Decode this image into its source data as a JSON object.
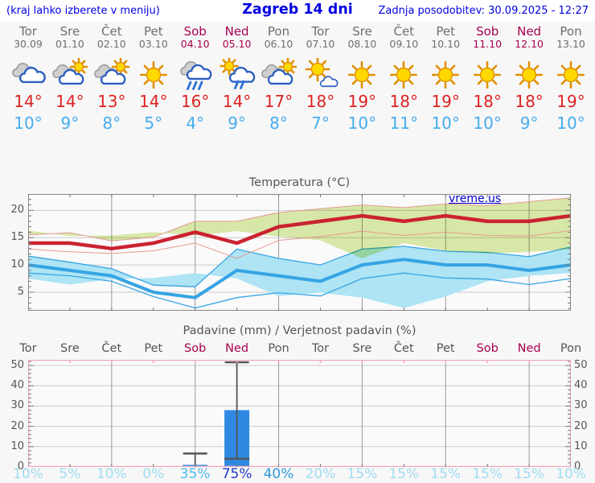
{
  "header": {
    "hint": "(kraj lahko izberete v meniju)",
    "title": "Zagreb 14 dni",
    "updated": "Zadnja posodobitev: 30.09.2025 - 12:27"
  },
  "watermark": {
    "text": "vreme.us"
  },
  "days": [
    {
      "name": "Tor",
      "date": "30.09",
      "weekend": false,
      "icon": "cloudy",
      "temp_max": 14,
      "temp_min": 10,
      "precip_prob": 10
    },
    {
      "name": "Sre",
      "date": "01.10",
      "weekend": false,
      "icon": "sun-cloud",
      "temp_max": 14,
      "temp_min": 9,
      "precip_prob": 5
    },
    {
      "name": "Čet",
      "date": "02.10",
      "weekend": false,
      "icon": "sun-cloud",
      "temp_max": 13,
      "temp_min": 8,
      "precip_prob": 10
    },
    {
      "name": "Pet",
      "date": "03.10",
      "weekend": false,
      "icon": "sunny",
      "temp_max": 14,
      "temp_min": 5,
      "precip_prob": 0
    },
    {
      "name": "Sob",
      "date": "04.10",
      "weekend": true,
      "icon": "rain",
      "temp_max": 16,
      "temp_min": 4,
      "precip_prob": 35
    },
    {
      "name": "Ned",
      "date": "05.10",
      "weekend": true,
      "icon": "sun-rain",
      "temp_max": 14,
      "temp_min": 9,
      "precip_prob": 75
    },
    {
      "name": "Pon",
      "date": "06.10",
      "weekend": false,
      "icon": "sun-cloud",
      "temp_max": 17,
      "temp_min": 8,
      "precip_prob": 40
    },
    {
      "name": "Tor",
      "date": "07.10",
      "weekend": false,
      "icon": "sun-small-cloud",
      "temp_max": 18,
      "temp_min": 7,
      "precip_prob": 20
    },
    {
      "name": "Sre",
      "date": "08.10",
      "weekend": false,
      "icon": "sunny",
      "temp_max": 19,
      "temp_min": 10,
      "precip_prob": 15
    },
    {
      "name": "Čet",
      "date": "09.10",
      "weekend": false,
      "icon": "sunny",
      "temp_max": 18,
      "temp_min": 11,
      "precip_prob": 15
    },
    {
      "name": "Pet",
      "date": "10.10",
      "weekend": false,
      "icon": "sunny",
      "temp_max": 19,
      "temp_min": 10,
      "precip_prob": 15
    },
    {
      "name": "Sob",
      "date": "11.10",
      "weekend": true,
      "icon": "sunny",
      "temp_max": 18,
      "temp_min": 10,
      "precip_prob": 15
    },
    {
      "name": "Ned",
      "date": "12.10",
      "weekend": true,
      "icon": "sunny",
      "temp_max": 18,
      "temp_min": 9,
      "precip_prob": 15
    },
    {
      "name": "Pon",
      "date": "13.10",
      "weekend": false,
      "icon": "sunny",
      "temp_max": 19,
      "temp_min": 10,
      "precip_prob": 10
    }
  ],
  "chart_data": [
    {
      "type": "line",
      "title": "Temperatura (°C)",
      "x_categories": [
        "Tor",
        "Sre",
        "Čet",
        "Pet",
        "Sob",
        "Ned",
        "Pon",
        "Tor",
        "Sre",
        "Čet",
        "Pet",
        "Sob",
        "Ned",
        "Pon"
      ],
      "ylim": [
        1.6,
        23
      ],
      "y_ticks": [
        5,
        10,
        15,
        20
      ],
      "y_minor_step": 1,
      "grid_x_indices": [
        2,
        4,
        6,
        8,
        10,
        12
      ],
      "series": [
        {
          "name": "max-temp",
          "values": [
            14,
            14,
            13,
            14,
            16,
            14,
            17,
            18,
            19,
            18,
            19,
            18,
            18,
            19
          ],
          "band_upper": [
            15.5,
            15.9,
            14.4,
            15.1,
            18,
            18,
            19.6,
            20.3,
            21,
            20.5,
            21.2,
            20.9,
            21.6,
            22.3
          ],
          "band_lower": [
            12.9,
            12.4,
            12.1,
            12.6,
            14,
            11.2,
            14.5,
            15.2,
            16.2,
            15.4,
            16,
            15.4,
            15.3,
            16.3
          ]
        },
        {
          "name": "min-temp",
          "values": [
            10,
            9,
            8,
            5,
            4,
            9,
            8,
            7,
            10,
            11,
            10,
            10,
            9,
            10
          ],
          "band_upper": [
            11.6,
            10.5,
            9.3,
            6.3,
            6,
            12.9,
            11.2,
            10,
            12.9,
            13.4,
            12.5,
            12.3,
            11.5,
            13.3
          ],
          "band_lower": [
            8.5,
            8,
            7,
            4.2,
            2.1,
            4,
            4.9,
            4.3,
            7.5,
            8.5,
            7.6,
            7.4,
            6.4,
            7.5
          ]
        }
      ]
    },
    {
      "type": "bar",
      "title": "Padavine (mm) / Verjetnost padavin (%)",
      "x_categories": [
        "Tor",
        "Sre",
        "Čet",
        "Pet",
        "Sob",
        "Ned",
        "Pon",
        "Tor",
        "Sre",
        "Čet",
        "Pet",
        "Sob",
        "Ned",
        "Pon"
      ],
      "ylim": [
        0,
        52.8
      ],
      "y_ticks": [
        0,
        10,
        20,
        30,
        40,
        50
      ],
      "y_minor_step": 2,
      "grid_x_indices": [
        2,
        4,
        6,
        8,
        10,
        12
      ],
      "bars": [
        {
          "day_index": 4,
          "amount_mm": 1,
          "range_low_mm": 0,
          "range_high_mm": 7
        },
        {
          "day_index": 5,
          "amount_mm": 28,
          "range_low_mm": 4,
          "range_high_mm": 52
        }
      ],
      "probabilities_pct": [
        10,
        5,
        10,
        0,
        35,
        75,
        40,
        20,
        15,
        15,
        15,
        15,
        15,
        10
      ]
    }
  ],
  "colors": {
    "header_blue": "#0000e0",
    "weekday_gray": "#6e6e6e",
    "weekend_red": "#a6024e",
    "temp_max_text": "#dd2222",
    "temp_min_text": "#46acee",
    "axis_text": "#555555",
    "max_line": "#cb2231",
    "max_band_fill": "#dcecaa",
    "max_band_edge": "#e59a93",
    "min_line": "#35a4e4",
    "min_band_fill": "#aee4f4",
    "grid_vertical": "#9a9a9a",
    "grid_horizontal": "#cbcbcb",
    "temp_border": "#888888",
    "tick": "#777777",
    "precip_border": "#f2a9bc",
    "bar_fill": "#2f88e1",
    "whisker": "#555555",
    "prob_low": "#9fdcf2",
    "prob_mid": "#4cbcee",
    "prob_mid_dark": "#2e9add",
    "prob_high": "#2038c8",
    "plot_bg": "#fafafa",
    "watermark_blue": "#0000cc",
    "sun_fill": "#ffd800",
    "sun_stroke": "#e09000",
    "cloud_gray": "#cfcfcf",
    "cloud_gray_stroke": "#9a9a9a",
    "cloud_white": "#ffffff",
    "cloud_stroke": "#2b5fc0",
    "rain_stroke": "#2b6fd6"
  }
}
